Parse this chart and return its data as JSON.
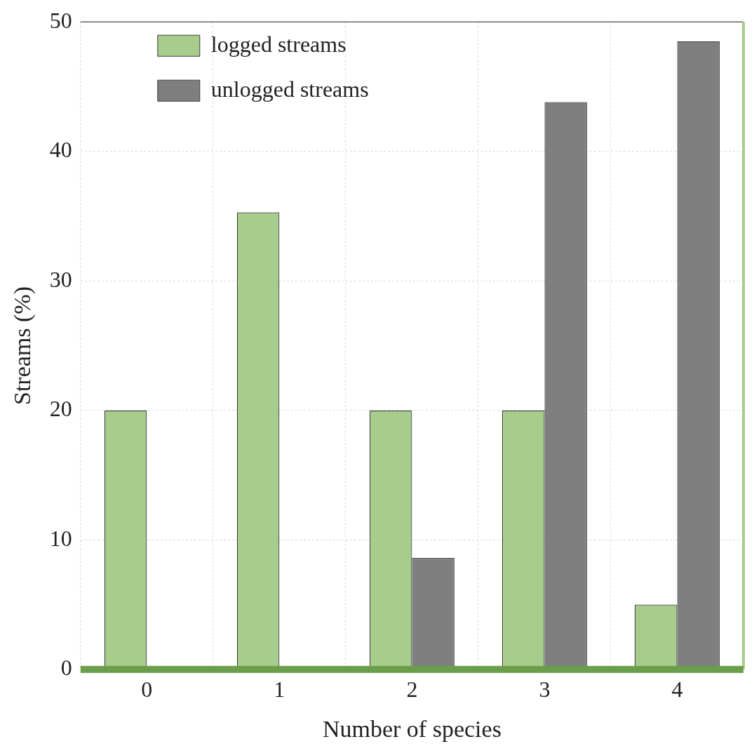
{
  "chart_data": {
    "type": "bar",
    "xlabel": "Number of species",
    "ylabel": "Streams (%)",
    "categories": [
      "0",
      "1",
      "2",
      "3",
      "4"
    ],
    "series": [
      {
        "name": "logged streams",
        "color": "#a8cc8c",
        "values": [
          20,
          35.3,
          20,
          20,
          5
        ]
      },
      {
        "name": "unlogged streams",
        "color": "#7f7f7f",
        "values": [
          0,
          0,
          8.6,
          43.8,
          48.5
        ]
      }
    ],
    "ylim": [
      0,
      50
    ],
    "yticks": [
      0,
      10,
      20,
      30,
      40,
      50
    ],
    "grid": true,
    "legend": "top left"
  }
}
